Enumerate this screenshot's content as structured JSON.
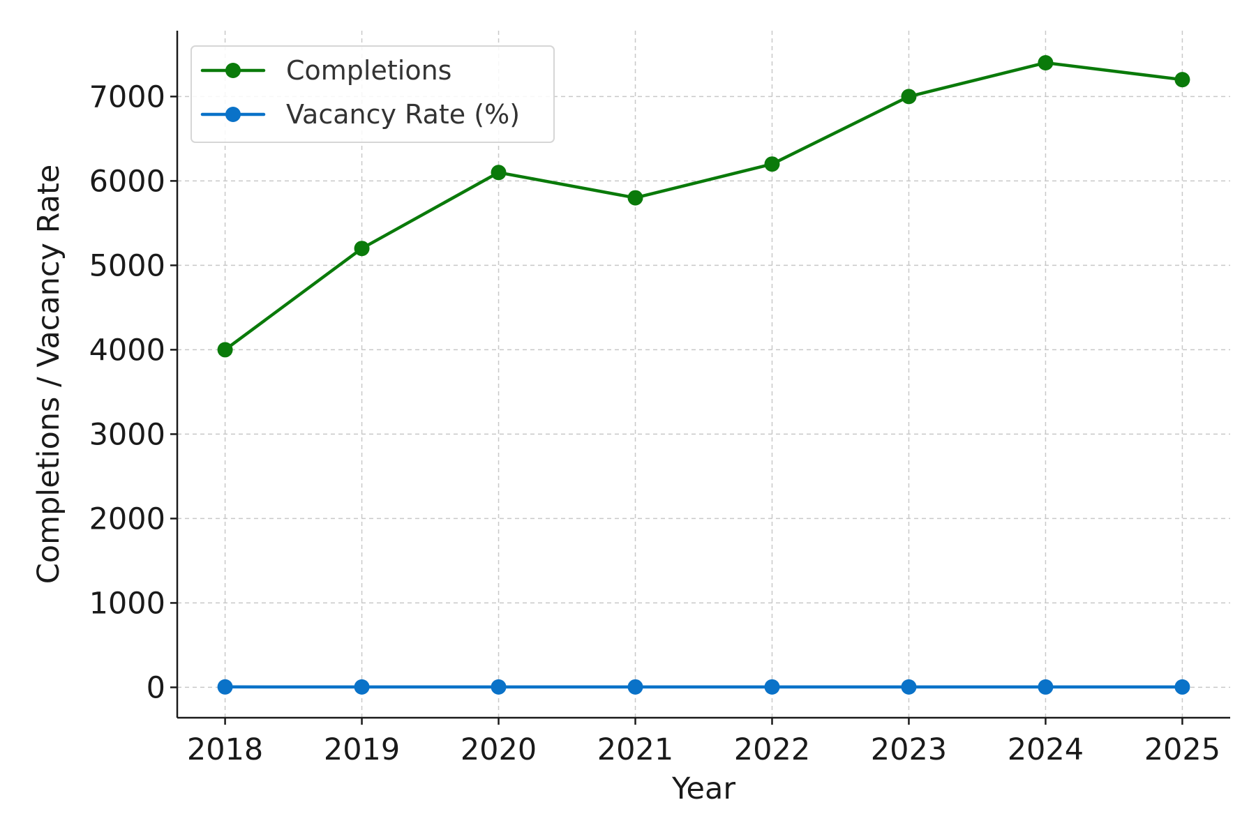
{
  "chart_data": {
    "type": "line",
    "title": "",
    "xlabel": "Year",
    "ylabel": "Completions / Vacancy Rate",
    "x": [
      2018,
      2019,
      2020,
      2021,
      2022,
      2023,
      2024,
      2025
    ],
    "x_tick_labels": [
      "2018",
      "2019",
      "2020",
      "2021",
      "2022",
      "2023",
      "2024",
      "2025"
    ],
    "y_ticks": [
      0,
      1000,
      2000,
      3000,
      4000,
      5000,
      6000,
      7000
    ],
    "y_tick_labels": [
      "0",
      "1000",
      "2000",
      "3000",
      "4000",
      "5000",
      "6000",
      "7000"
    ],
    "ylim": [
      -360,
      7780
    ],
    "xlim": [
      2017.65,
      2025.35
    ],
    "grid": true,
    "legend_position": "top-left",
    "series": [
      {
        "name": "Completions",
        "color": "#0a7a0a",
        "marker": "circle",
        "values": [
          4000,
          5200,
          6100,
          5800,
          6200,
          7000,
          7400,
          7200
        ]
      },
      {
        "name": "Vacancy Rate (%)",
        "color": "#0a72c8",
        "marker": "circle",
        "values": [
          5.2,
          4.8,
          4.5,
          4.9,
          5.1,
          4.6,
          4.3,
          4.4
        ]
      }
    ]
  }
}
